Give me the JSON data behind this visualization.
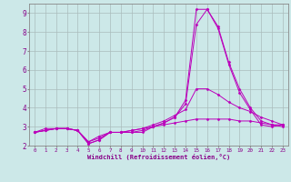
{
  "xlabel": "Windchill (Refroidissement éolien,°C)",
  "ylabel": "",
  "background_color": "#cce8e8",
  "grid_color": "#aabcbc",
  "line_color": "#bb00bb",
  "x_ticks": [
    0,
    1,
    2,
    3,
    4,
    5,
    6,
    7,
    8,
    9,
    10,
    11,
    12,
    13,
    14,
    15,
    16,
    17,
    18,
    19,
    20,
    21,
    22,
    23
  ],
  "ylim": [
    2,
    9.5
  ],
  "xlim": [
    -0.5,
    23.5
  ],
  "lines": [
    {
      "x": [
        0,
        1,
        2,
        3,
        4,
        5,
        6,
        7,
        8,
        9,
        10,
        11,
        12,
        13,
        14,
        15,
        16,
        17,
        18,
        19,
        20,
        21,
        22,
        23
      ],
      "y": [
        2.7,
        2.9,
        2.9,
        2.9,
        2.8,
        2.1,
        2.3,
        2.7,
        2.7,
        2.7,
        2.7,
        3.0,
        3.2,
        3.5,
        4.4,
        9.2,
        9.2,
        8.2,
        6.3,
        4.8,
        3.9,
        3.1,
        3.0,
        3.1
      ]
    },
    {
      "x": [
        0,
        1,
        2,
        3,
        4,
        5,
        6,
        7,
        8,
        9,
        10,
        11,
        12,
        13,
        14,
        15,
        16,
        17,
        18,
        19,
        20,
        21,
        22,
        23
      ],
      "y": [
        2.7,
        2.8,
        2.9,
        2.9,
        2.8,
        2.1,
        2.3,
        2.7,
        2.7,
        2.7,
        2.8,
        3.0,
        3.2,
        3.5,
        4.2,
        8.4,
        9.2,
        8.3,
        6.4,
        5.0,
        4.0,
        3.3,
        3.1,
        3.1
      ]
    },
    {
      "x": [
        0,
        1,
        2,
        3,
        4,
        5,
        6,
        7,
        8,
        9,
        10,
        11,
        12,
        13,
        14,
        15,
        16,
        17,
        18,
        19,
        20,
        21,
        22,
        23
      ],
      "y": [
        2.7,
        2.8,
        2.9,
        2.9,
        2.8,
        2.2,
        2.4,
        2.7,
        2.7,
        2.8,
        2.9,
        3.1,
        3.3,
        3.6,
        3.9,
        5.0,
        5.0,
        4.7,
        4.3,
        4.0,
        3.8,
        3.5,
        3.3,
        3.1
      ]
    },
    {
      "x": [
        0,
        1,
        2,
        3,
        4,
        5,
        6,
        7,
        8,
        9,
        10,
        11,
        12,
        13,
        14,
        15,
        16,
        17,
        18,
        19,
        20,
        21,
        22,
        23
      ],
      "y": [
        2.7,
        2.8,
        2.9,
        2.9,
        2.8,
        2.2,
        2.5,
        2.7,
        2.7,
        2.8,
        2.9,
        3.0,
        3.1,
        3.2,
        3.3,
        3.4,
        3.4,
        3.4,
        3.4,
        3.3,
        3.3,
        3.2,
        3.1,
        3.0
      ]
    }
  ],
  "yticks": [
    2,
    3,
    4,
    5,
    6,
    7,
    8,
    9
  ],
  "ytick_labels": [
    "2",
    "3",
    "4",
    "5",
    "6",
    "7",
    "8",
    "9"
  ]
}
